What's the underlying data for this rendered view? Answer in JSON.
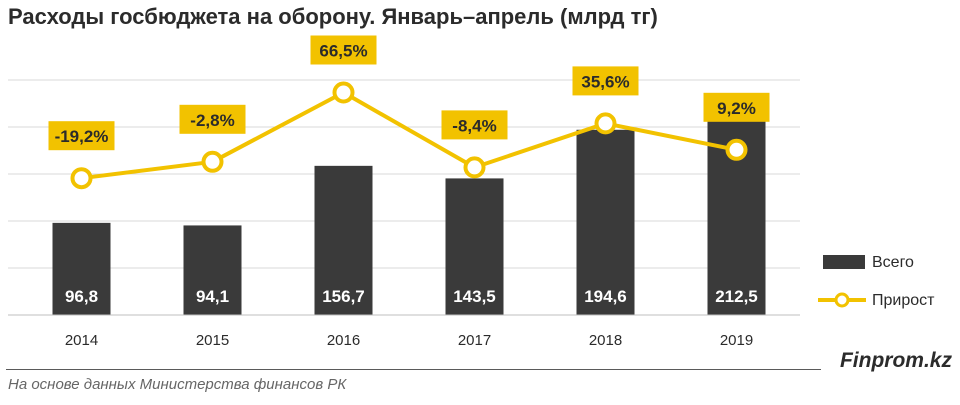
{
  "title": "Расходы госбюджета на оборону. Январь–апрель (млрд тг)",
  "brand": "Finprom.kz",
  "source": "На основе данных Министерства финансов РК",
  "colors": {
    "bar": "#3a3a3a",
    "line": "#f2c200",
    "marker_fill": "#ffffff",
    "label_box": "#f2c200",
    "grid": "#d9d9d9",
    "text": "#2b2b2b"
  },
  "chart_data": {
    "type": "bar+line",
    "categories": [
      "2014",
      "2015",
      "2016",
      "2017",
      "2018",
      "2019"
    ],
    "series": [
      {
        "name": "Всего",
        "type": "bar",
        "values": [
          96.8,
          94.1,
          156.7,
          143.5,
          194.6,
          212.5
        ],
        "labels": [
          "96,8",
          "94,1",
          "156,7",
          "143,5",
          "194,6",
          "212,5"
        ]
      },
      {
        "name": "Прирост",
        "type": "line",
        "values": [
          -19.2,
          -2.8,
          66.5,
          -8.4,
          35.6,
          9.2
        ],
        "labels": [
          "-19,2%",
          "-2,8%",
          "66,5%",
          "-8,4%",
          "35,6%",
          "9,2%"
        ]
      }
    ],
    "bar_ylim": [
      0,
      250
    ],
    "line_ylim": [
      -50,
      100
    ],
    "grid": true,
    "legend": "right"
  }
}
